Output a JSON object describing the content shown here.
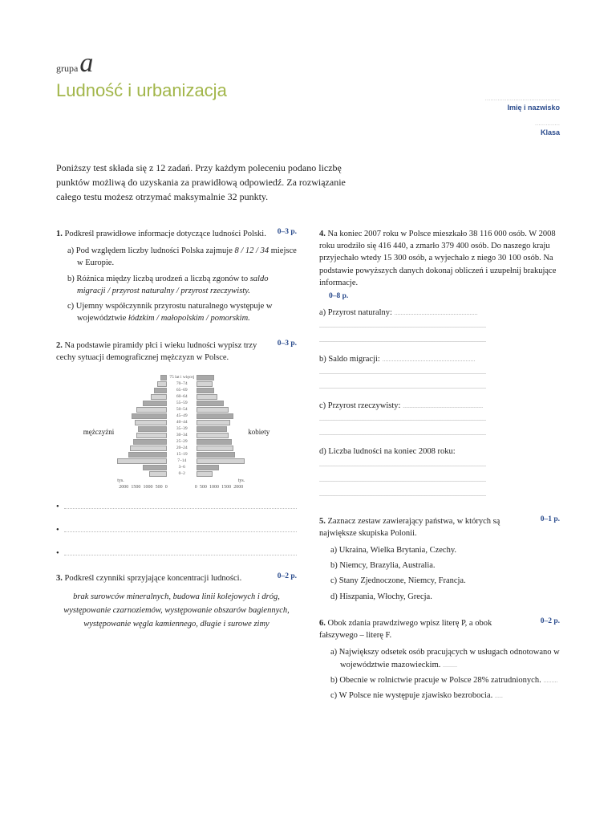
{
  "header": {
    "grupa_label": "grupa",
    "grupa_letter": "a",
    "title": "Ludność i urbanizacja",
    "name_label": "Imię i nazwisko",
    "class_label": "Klasa"
  },
  "intro": "Poniższy test składa się z 12 zadań. Przy każdym poleceniu podano liczbę punktów możliwą do uzyskania za prawidłową odpowiedź. Za rozwiązanie całego testu możesz otrzymać maksymalnie 32 punkty.",
  "tasks": {
    "t1": {
      "num": "1.",
      "text": "Podkreśl prawidłowe informacje dotyczące ludności Polski.",
      "points": "0–3 p.",
      "a_pre": "a) Pod względem liczby ludności Polska zajmuje ",
      "a_it": "8 / 12 / 34",
      "a_post": " miejsce w Europie.",
      "b_pre": "b) Różnica między liczbą urodzeń a liczbą zgonów to ",
      "b_it": "saldo migracji / przyrost naturalny / przyrost rzeczywisty.",
      "c_pre": "c) Ujemny współczynnik przyrostu naturalnego występuje w województwie ",
      "c_it": "łódzkim / małopolskim / pomorskim."
    },
    "t2": {
      "num": "2.",
      "text": "Na podstawie piramidy płci i wieku ludności wypisz trzy cechy sytuacji demograficznej mężczyzn w Polsce.",
      "points": "0–3 p."
    },
    "t3": {
      "num": "3.",
      "text": "Podkreśl czynniki sprzyjające koncentracji ludności.",
      "points": "0–2 p.",
      "body": "brak surowców mineralnych, budowa linii kolejowych i dróg, występowanie czarnoziemów, występowanie obszarów bagiennych, występowanie węgla kamiennego, długie i surowe zimy"
    },
    "t4": {
      "num": "4.",
      "text": "Na koniec 2007 roku w Polsce mieszkało 38 116 000 osób. W 2008 roku urodziło się 416 440, a zmarło 379 400 osób. Do naszego kraju przyjechało wtedy 15 300 osób, a wyjechało z niego 30 100 osób. Na podstawie powyższych danych dokonaj obliczeń i uzupełnij brakujące informacje.",
      "points": "0–8 p.",
      "a": "a) Przyrost naturalny:",
      "b": "b) Saldo migracji:",
      "c": "c) Przyrost rzeczywisty:",
      "d": "d) Liczba ludności na koniec 2008 roku:"
    },
    "t5": {
      "num": "5.",
      "text": "Zaznacz zestaw zawierający państwa, w których są największe skupiska Polonii.",
      "points": "0–1 p.",
      "a": "a) Ukraina, Wielka Brytania, Czechy.",
      "b": "b) Niemcy, Brazylia, Australia.",
      "c": "c) Stany Zjednoczone, Niemcy, Francja.",
      "d": "d) Hiszpania, Włochy, Grecja."
    },
    "t6": {
      "num": "6.",
      "text": "Obok zdania prawdziwego wpisz literę P, a obok fałszywego – literę F.",
      "points": "0–2 p.",
      "a": "a) Największy odsetek osób pracujących w usługach odnotowano w województwie mazowieckim.",
      "b": "b) Obecnie w rolnictwie pracuje w Polsce 28% zatrudnionych.",
      "c": "c) W Polsce nie występuje zjawisko bezrobocia."
    }
  },
  "pyramid": {
    "left_label": "mężczyźni",
    "right_label": "kobiety",
    "age_labels": [
      "75 lat i więcej",
      "70–74",
      "65–69",
      "60–64",
      "55–59",
      "50–54",
      "45–49",
      "40–44",
      "35–39",
      "30–34",
      "25–29",
      "20–24",
      "15–19",
      "7–14",
      "3–6",
      "0–2"
    ],
    "left_bars": [
      8,
      12,
      16,
      20,
      30,
      38,
      44,
      40,
      36,
      38,
      42,
      46,
      48,
      62,
      30,
      22
    ],
    "right_bars": [
      22,
      20,
      22,
      26,
      34,
      40,
      46,
      42,
      38,
      40,
      44,
      46,
      48,
      60,
      28,
      20
    ],
    "axis_ticks_left": [
      "2000",
      "1500",
      "1000",
      "500",
      "0"
    ],
    "axis_ticks_right": [
      "0",
      "500",
      "1000",
      "1500",
      "2000"
    ],
    "axis_unit": "tys.",
    "bar_light": "#d4d4d4",
    "bar_dark": "#a8a8a8",
    "bar_border": "#999"
  }
}
